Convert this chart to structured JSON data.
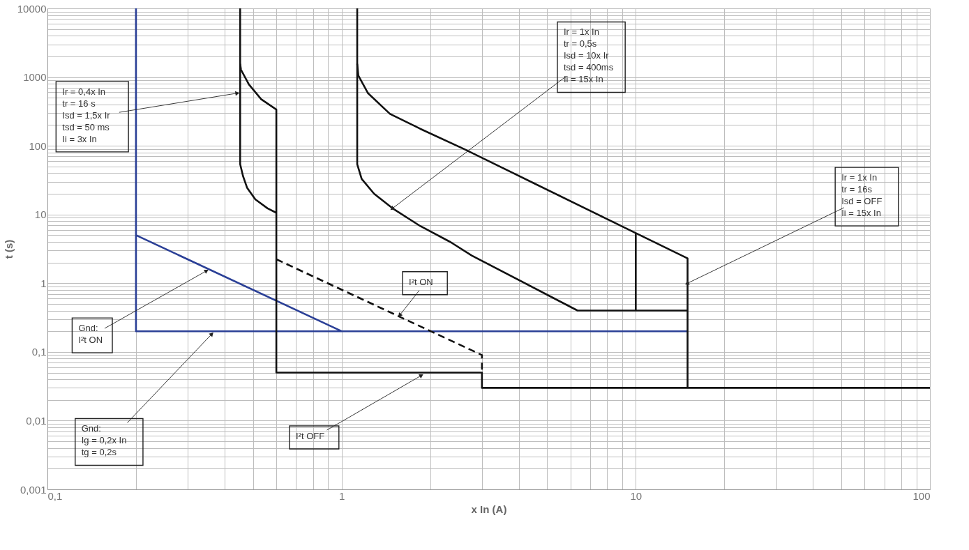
{
  "chart_data": {
    "type": "line",
    "xlabel": "x In (A)",
    "ylabel": "t (s)",
    "log": "xy",
    "grid": true,
    "xlim": [
      0.1,
      100
    ],
    "ylim": [
      0.001,
      10000
    ],
    "xticks": [
      {
        "value": 0.1,
        "label": "0,1"
      },
      {
        "value": 0.2,
        "label": null
      },
      {
        "value": 0.3,
        "label": null
      },
      {
        "value": 0.4,
        "label": null
      },
      {
        "value": 0.5,
        "label": null
      },
      {
        "value": 0.6,
        "label": null
      },
      {
        "value": 0.7,
        "label": null
      },
      {
        "value": 0.8,
        "label": null
      },
      {
        "value": 0.9,
        "label": null
      },
      1,
      {
        "value": 2,
        "label": null
      },
      {
        "value": 3,
        "label": null
      },
      {
        "value": 4,
        "label": null
      },
      {
        "value": 5,
        "label": null
      },
      {
        "value": 6,
        "label": null
      },
      {
        "value": 7,
        "label": null
      },
      {
        "value": 8,
        "label": null
      },
      {
        "value": 9,
        "label": null
      },
      10,
      {
        "value": 20,
        "label": null
      },
      {
        "value": 30,
        "label": null
      },
      {
        "value": 40,
        "label": null
      },
      {
        "value": 50,
        "label": null
      },
      {
        "value": 60,
        "label": null
      },
      {
        "value": 70,
        "label": null
      },
      {
        "value": 80,
        "label": null
      },
      {
        "value": 90,
        "label": null
      },
      100
    ],
    "yticks": [
      {
        "value": 0.001,
        "label": "0,001"
      },
      {
        "value": 0.002,
        "label": null
      },
      {
        "value": 0.003,
        "label": null
      },
      {
        "value": 0.004,
        "label": null
      },
      {
        "value": 0.005,
        "label": null
      },
      {
        "value": 0.006,
        "label": null
      },
      {
        "value": 0.007,
        "label": null
      },
      {
        "value": 0.008,
        "label": null
      },
      {
        "value": 0.009,
        "label": null
      },
      {
        "value": 0.01,
        "label": "0,01"
      },
      {
        "value": 0.02,
        "label": null
      },
      {
        "value": 0.03,
        "label": null
      },
      {
        "value": 0.04,
        "label": null
      },
      {
        "value": 0.05,
        "label": null
      },
      {
        "value": 0.06,
        "label": null
      },
      {
        "value": 0.07,
        "label": null
      },
      {
        "value": 0.08,
        "label": null
      },
      {
        "value": 0.09,
        "label": null
      },
      {
        "value": 0.1,
        "label": "0,1"
      },
      {
        "value": 0.2,
        "label": null
      },
      {
        "value": 0.3,
        "label": null
      },
      {
        "value": 0.4,
        "label": null
      },
      {
        "value": 0.5,
        "label": null
      },
      {
        "value": 0.6,
        "label": null
      },
      {
        "value": 0.7,
        "label": null
      },
      {
        "value": 0.8,
        "label": null
      },
      {
        "value": 0.9,
        "label": null
      },
      1,
      {
        "value": 2,
        "label": null
      },
      {
        "value": 3,
        "label": null
      },
      {
        "value": 4,
        "label": null
      },
      {
        "value": 5,
        "label": null
      },
      {
        "value": 6,
        "label": null
      },
      {
        "value": 7,
        "label": null
      },
      {
        "value": 8,
        "label": null
      },
      {
        "value": 9,
        "label": null
      },
      10,
      {
        "value": 20,
        "label": null
      },
      {
        "value": 30,
        "label": null
      },
      {
        "value": 40,
        "label": null
      },
      {
        "value": 50,
        "label": null
      },
      {
        "value": 60,
        "label": null
      },
      {
        "value": 70,
        "label": null
      },
      {
        "value": 80,
        "label": null
      },
      {
        "value": 90,
        "label": null
      },
      100,
      {
        "value": 200,
        "label": null
      },
      {
        "value": 300,
        "label": null
      },
      {
        "value": 400,
        "label": null
      },
      {
        "value": 500,
        "label": null
      },
      {
        "value": 600,
        "label": null
      },
      {
        "value": 700,
        "label": null
      },
      {
        "value": 800,
        "label": null
      },
      {
        "value": 900,
        "label": null
      },
      1000,
      {
        "value": 2000,
        "label": null
      },
      {
        "value": 3000,
        "label": null
      },
      {
        "value": 4000,
        "label": null
      },
      {
        "value": 5000,
        "label": null
      },
      {
        "value": 6000,
        "label": null
      },
      {
        "value": 7000,
        "label": null
      },
      {
        "value": 8000,
        "label": null
      },
      {
        "value": 9000,
        "label": null
      },
      10000
    ],
    "series": [
      {
        "color": "#2a3f96",
        "x": [
          0.2,
          0.2,
          15
        ],
        "values": [
          10000,
          0.2,
          0.2
        ]
      },
      {
        "color": "#2a3f96",
        "x": [
          0.2,
          1
        ],
        "values": [
          5,
          0.2
        ]
      },
      {
        "color": "#111111",
        "x": [
          0.452,
          0.452,
          0.455,
          0.484,
          0.533,
          0.6,
          0.6,
          0.6,
          3,
          3,
          100
        ],
        "values": [
          10000,
          1560,
          1280,
          782,
          476,
          337,
          10.6,
          0.05,
          0.05,
          0.03,
          0.03
        ]
      },
      {
        "color": "#111111",
        "x": [
          0.452,
          0.452,
          0.462,
          0.477,
          0.509,
          0.56,
          0.6
        ],
        "values": [
          1560,
          54,
          36.5,
          24.6,
          16.6,
          12.3,
          10.6
        ]
      },
      {
        "color": "#111111",
        "line_style": "dashed",
        "x": [
          0.6,
          3,
          3
        ],
        "values": [
          2.23,
          0.09,
          0.05
        ]
      },
      {
        "color": "#111111",
        "x": [
          1.13,
          1.13,
          1.14,
          1.23,
          1.46,
          1.85,
          2.61,
          10,
          15,
          15
        ],
        "values": [
          10000,
          1560,
          1050,
          581,
          291,
          177,
          89.5,
          5.37,
          2.3,
          0.03
        ]
      },
      {
        "color": "#111111",
        "x": [
          1.13,
          1.13,
          1.17,
          1.29,
          1.49,
          1.85,
          2.35,
          2.77,
          6.34,
          15
        ],
        "values": [
          1560,
          54,
          33,
          20,
          12.3,
          6.8,
          3.95,
          2.53,
          0.4,
          0.4
        ]
      },
      {
        "color": "#111111",
        "x": [
          10,
          10
        ],
        "values": [
          5.37,
          0.4
        ]
      }
    ],
    "annotations": [
      {
        "text": "Ir = 0,4x In\ntr = 16 s\nIsd = 1,5x Ir\ntsd = 50 ms\nIi = 3x In",
        "x": 0.44,
        "y": 581
      },
      {
        "text": "Ir = 1x In\ntr = 0,5s\nIsd = 10x Ir\ntsd = 400ms\nIi = 15x In",
        "x": 1.49,
        "y": 12.3
      },
      {
        "text": "Ir = 1x In\ntr = 16s\nIsd = OFF\nIi = 15x In",
        "x": 15,
        "y": 1.0
      },
      {
        "text": "I²t  ON",
        "x": 1.58,
        "y": 0.347
      },
      {
        "text": "Gnd:\nI²t ON",
        "x": 0.346,
        "y": 1.5
      },
      {
        "text": "Gnd:\nIg = 0,2x In\ntg = 0,2s",
        "x": 0.361,
        "y": 0.18
      },
      {
        "text": "I²t  OFF",
        "x": 1.86,
        "y": 0.045
      }
    ]
  }
}
